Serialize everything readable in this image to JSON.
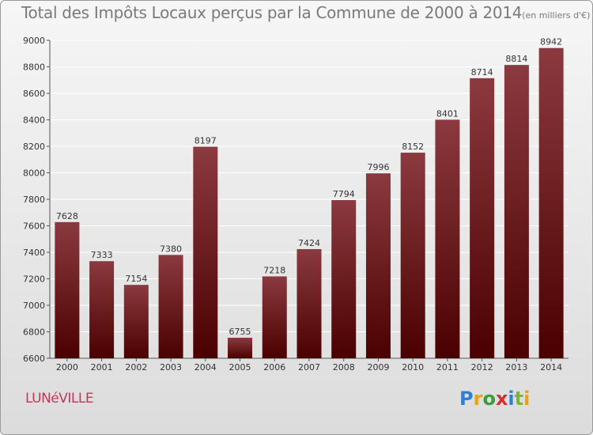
{
  "title": "Total des Impôts Locaux perçus par la Commune de 2000 à 2014",
  "unit": "(en milliers d'€)",
  "commune": "LUNéVILLE",
  "logo": {
    "letters": [
      "P",
      "r",
      "o",
      "x",
      "i",
      "t",
      "i"
    ],
    "colors": [
      "#2f7fd6",
      "#e8a21a",
      "#3a9c3a",
      "#d32f2f",
      "#2f7fd6",
      "#7cb342",
      "#e8a21a"
    ]
  },
  "colors": {
    "bar_top": "#8b3a3f",
    "bar_bottom": "#4a0000",
    "grid": "#ffffff"
  },
  "chart_data": {
    "type": "bar",
    "title": "Total des Impôts Locaux perçus par la Commune de 2000 à 2014",
    "xlabel": "",
    "ylabel": "en milliers d'€",
    "categories": [
      "2000",
      "2001",
      "2002",
      "2003",
      "2004",
      "2005",
      "2006",
      "2007",
      "2008",
      "2009",
      "2010",
      "2011",
      "2012",
      "2013",
      "2014"
    ],
    "values": [
      7628,
      7333,
      7154,
      7380,
      8197,
      6755,
      7218,
      7424,
      7794,
      7996,
      8152,
      8401,
      8714,
      8814,
      8942
    ],
    "ylim": [
      6600,
      9000
    ],
    "yticks": [
      6600,
      6800,
      7000,
      7200,
      7400,
      7600,
      7800,
      8000,
      8200,
      8400,
      8600,
      8800,
      9000
    ],
    "grid": true
  }
}
